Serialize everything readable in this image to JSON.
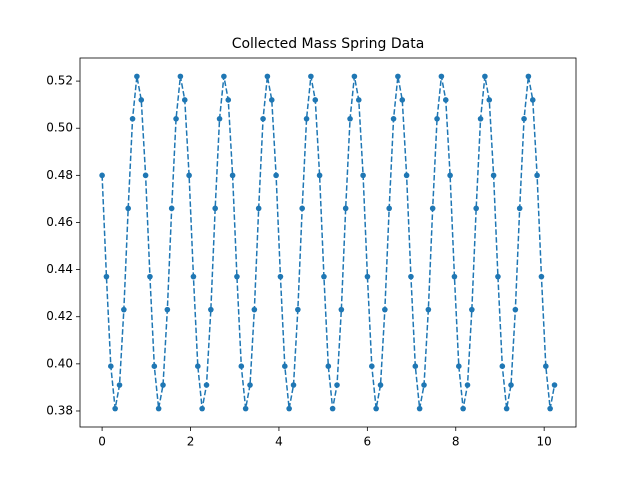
{
  "chart_data": {
    "type": "line",
    "title": "Collected Mass Spring Data",
    "x": [
      0,
      0.098,
      0.197,
      0.295,
      0.394,
      0.492,
      0.59,
      0.689,
      0.787,
      0.886,
      0.984,
      1.082,
      1.181,
      1.279,
      1.378,
      1.476,
      1.574,
      1.673,
      1.771,
      1.87,
      1.968,
      2.066,
      2.165,
      2.263,
      2.362,
      2.46,
      2.558,
      2.657,
      2.755,
      2.854,
      2.952,
      3.05,
      3.149,
      3.247,
      3.346,
      3.444,
      3.542,
      3.641,
      3.739,
      3.838,
      3.936,
      4.034,
      4.133,
      4.231,
      4.33,
      4.428,
      4.526,
      4.625,
      4.723,
      4.822,
      4.92,
      5.018,
      5.117,
      5.215,
      5.314,
      5.412,
      5.51,
      5.609,
      5.707,
      5.806,
      5.904,
      6.002,
      6.101,
      6.199,
      6.298,
      6.396,
      6.494,
      6.593,
      6.691,
      6.79,
      6.888,
      6.986,
      7.085,
      7.183,
      7.282,
      7.38,
      7.478,
      7.577,
      7.675,
      7.774,
      7.872,
      7.97,
      8.069,
      8.167,
      8.266,
      8.364,
      8.462,
      8.561,
      8.659,
      8.758,
      8.856,
      8.954,
      9.053,
      9.151,
      9.25,
      9.348,
      9.446,
      9.545,
      9.643,
      9.742,
      9.84,
      9.938,
      10.037,
      10.135,
      10.234
    ],
    "series": [
      {
        "color": "#1f77b4",
        "values": [
          0.48,
          0.437,
          0.399,
          0.381,
          0.391,
          0.423,
          0.466,
          0.504,
          0.522,
          0.512,
          0.48,
          0.437,
          0.399,
          0.381,
          0.391,
          0.423,
          0.466,
          0.504,
          0.522,
          0.512,
          0.48,
          0.437,
          0.399,
          0.381,
          0.391,
          0.423,
          0.466,
          0.504,
          0.522,
          0.512,
          0.48,
          0.437,
          0.399,
          0.381,
          0.391,
          0.423,
          0.466,
          0.504,
          0.522,
          0.512,
          0.48,
          0.437,
          0.399,
          0.381,
          0.391,
          0.423,
          0.466,
          0.504,
          0.522,
          0.512,
          0.48,
          0.437,
          0.399,
          0.381,
          0.391,
          0.423,
          0.466,
          0.504,
          0.522,
          0.512,
          0.48,
          0.437,
          0.399,
          0.381,
          0.391,
          0.423,
          0.466,
          0.504,
          0.522,
          0.512,
          0.48,
          0.437,
          0.399,
          0.381,
          0.391,
          0.423,
          0.466,
          0.504,
          0.522,
          0.512,
          0.48,
          0.437,
          0.399,
          0.381,
          0.391,
          0.423,
          0.466,
          0.504,
          0.522,
          0.512,
          0.48,
          0.437,
          0.399,
          0.381,
          0.391,
          0.423,
          0.466,
          0.504,
          0.522,
          0.512,
          0.48,
          0.437,
          0.399,
          0.381,
          0.391
        ]
      }
    ],
    "xlim": [
      -0.5,
      10.72
    ],
    "xticks": [
      0,
      2,
      4,
      6,
      8,
      10
    ],
    "ylim": [
      0.3732,
      0.5298
    ],
    "yticks": [
      0.38,
      {
        "value": 0.4,
        "label": "0.40"
      },
      0.42,
      0.44,
      0.46,
      0.48,
      {
        "value": 0.5,
        "label": "0.50"
      },
      0.52
    ]
  }
}
